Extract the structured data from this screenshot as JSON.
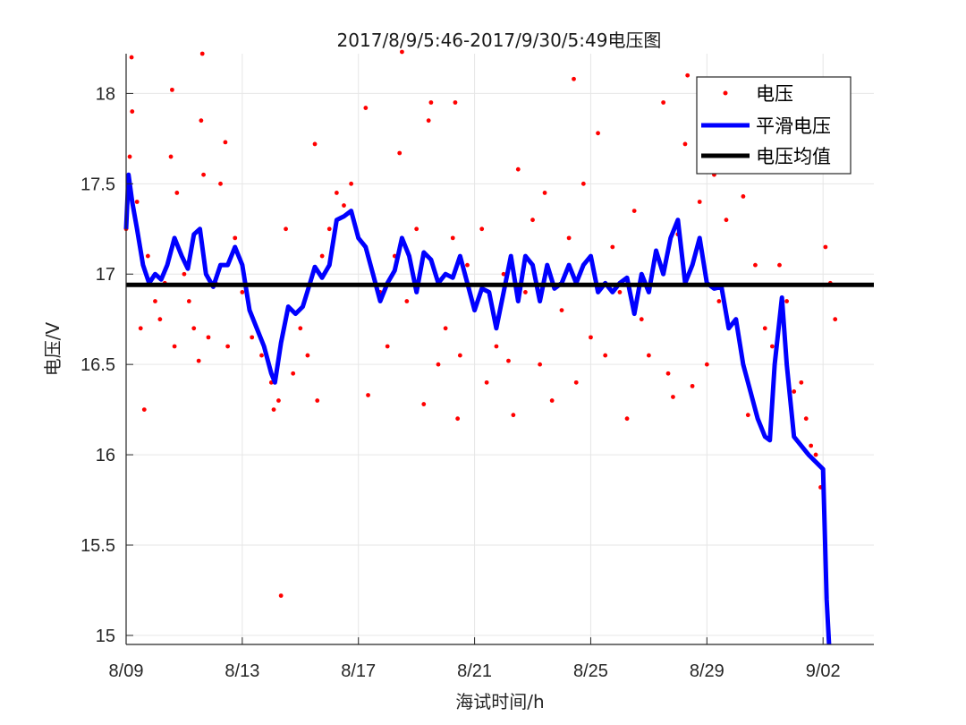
{
  "chart_data": {
    "type": "scatter",
    "title": "2017/8/9/5:46-2017/9/30/5:49电压图",
    "xlabel": "海试时间/h",
    "ylabel": "电压/V",
    "x_unit": "date (2017)",
    "xlim": [
      "2017-08-09",
      "2017-09-03T18:00"
    ],
    "ylim": [
      14.95,
      18.22
    ],
    "x_ticks": [
      {
        "date": "2017-08-09",
        "label": "8/09"
      },
      {
        "date": "2017-08-13",
        "label": "8/13"
      },
      {
        "date": "2017-08-17",
        "label": "8/17"
      },
      {
        "date": "2017-08-21",
        "label": "8/21"
      },
      {
        "date": "2017-08-25",
        "label": "8/25"
      },
      {
        "date": "2017-08-29",
        "label": "8/29"
      },
      {
        "date": "2017-09-02",
        "label": "9/02"
      }
    ],
    "y_ticks": [
      15,
      15.5,
      16,
      16.5,
      17,
      17.5,
      18
    ],
    "y_tick_labels": [
      "15",
      "15.5",
      "16",
      "16.5",
      "17",
      "17.5",
      "18"
    ],
    "grid": true,
    "legend_position": "top-right",
    "series": [
      {
        "name": "电压",
        "kind": "scatter",
        "color": "#ff0000",
        "points": [
          [
            "2017-08-09T00:00",
            17.25
          ],
          [
            "2017-08-09T03:00",
            17.65
          ],
          [
            "2017-08-09T04:30",
            18.2
          ],
          [
            "2017-08-09T05:00",
            17.9
          ],
          [
            "2017-08-09T09:00",
            17.4
          ],
          [
            "2017-08-09T12:00",
            16.7
          ],
          [
            "2017-08-09T15:00",
            16.25
          ],
          [
            "2017-08-09T18:00",
            17.1
          ],
          [
            "2017-08-10T00:00",
            16.85
          ],
          [
            "2017-08-10T04:00",
            16.75
          ],
          [
            "2017-08-10T08:00",
            16.95
          ],
          [
            "2017-08-10T13:00",
            17.65
          ],
          [
            "2017-08-10T14:00",
            18.02
          ],
          [
            "2017-08-10T16:00",
            16.6
          ],
          [
            "2017-08-10T18:00",
            17.45
          ],
          [
            "2017-08-11T00:00",
            17.0
          ],
          [
            "2017-08-11T04:00",
            16.85
          ],
          [
            "2017-08-11T08:00",
            16.7
          ],
          [
            "2017-08-11T12:00",
            16.52
          ],
          [
            "2017-08-11T14:00",
            17.85
          ],
          [
            "2017-08-11T15:00",
            18.22
          ],
          [
            "2017-08-11T16:00",
            17.55
          ],
          [
            "2017-08-11T20:00",
            16.65
          ],
          [
            "2017-08-12T02:00",
            16.95
          ],
          [
            "2017-08-12T06:00",
            17.5
          ],
          [
            "2017-08-12T10:00",
            17.73
          ],
          [
            "2017-08-12T12:00",
            16.6
          ],
          [
            "2017-08-12T18:00",
            17.2
          ],
          [
            "2017-08-13T00:00",
            16.9
          ],
          [
            "2017-08-13T08:00",
            16.65
          ],
          [
            "2017-08-13T16:00",
            16.55
          ],
          [
            "2017-08-14T00:00",
            16.4
          ],
          [
            "2017-08-14T02:00",
            16.25
          ],
          [
            "2017-08-14T06:00",
            16.3
          ],
          [
            "2017-08-14T08:00",
            15.22
          ],
          [
            "2017-08-14T12:00",
            17.25
          ],
          [
            "2017-08-14T18:00",
            16.45
          ],
          [
            "2017-08-15T00:00",
            16.7
          ],
          [
            "2017-08-15T06:00",
            16.55
          ],
          [
            "2017-08-15T12:00",
            17.72
          ],
          [
            "2017-08-15T14:00",
            16.3
          ],
          [
            "2017-08-15T18:00",
            17.1
          ],
          [
            "2017-08-16T00:00",
            17.25
          ],
          [
            "2017-08-16T06:00",
            17.45
          ],
          [
            "2017-08-16T12:00",
            17.38
          ],
          [
            "2017-08-16T18:00",
            17.5
          ],
          [
            "2017-08-17T00:00",
            17.2
          ],
          [
            "2017-08-17T06:00",
            17.92
          ],
          [
            "2017-08-17T08:00",
            16.33
          ],
          [
            "2017-08-17T12:00",
            17.0
          ],
          [
            "2017-08-17T18:00",
            16.9
          ],
          [
            "2017-08-18T00:00",
            16.6
          ],
          [
            "2017-08-18T06:00",
            17.1
          ],
          [
            "2017-08-18T10:00",
            17.67
          ],
          [
            "2017-08-18T12:00",
            18.23
          ],
          [
            "2017-08-18T16:00",
            16.85
          ],
          [
            "2017-08-19T00:00",
            17.25
          ],
          [
            "2017-08-19T06:00",
            16.28
          ],
          [
            "2017-08-19T10:00",
            17.85
          ],
          [
            "2017-08-19T12:00",
            17.95
          ],
          [
            "2017-08-19T18:00",
            16.5
          ],
          [
            "2017-08-20T00:00",
            16.7
          ],
          [
            "2017-08-20T06:00",
            17.2
          ],
          [
            "2017-08-20T08:00",
            17.95
          ],
          [
            "2017-08-20T10:00",
            16.2
          ],
          [
            "2017-08-20T12:00",
            16.55
          ],
          [
            "2017-08-20T18:00",
            17.05
          ],
          [
            "2017-08-21T00:00",
            16.8
          ],
          [
            "2017-08-21T06:00",
            17.25
          ],
          [
            "2017-08-21T10:00",
            16.4
          ],
          [
            "2017-08-21T18:00",
            16.6
          ],
          [
            "2017-08-22T00:00",
            17.0
          ],
          [
            "2017-08-22T04:00",
            16.52
          ],
          [
            "2017-08-22T08:00",
            16.22
          ],
          [
            "2017-08-22T12:00",
            17.58
          ],
          [
            "2017-08-22T18:00",
            16.9
          ],
          [
            "2017-08-23T00:00",
            17.3
          ],
          [
            "2017-08-23T06:00",
            16.5
          ],
          [
            "2017-08-23T10:00",
            17.45
          ],
          [
            "2017-08-23T16:00",
            16.3
          ],
          [
            "2017-08-24T00:00",
            16.8
          ],
          [
            "2017-08-24T06:00",
            17.2
          ],
          [
            "2017-08-24T10:00",
            18.08
          ],
          [
            "2017-08-24T12:00",
            16.4
          ],
          [
            "2017-08-24T18:00",
            17.5
          ],
          [
            "2017-08-25T00:00",
            16.65
          ],
          [
            "2017-08-25T06:00",
            17.78
          ],
          [
            "2017-08-25T12:00",
            16.55
          ],
          [
            "2017-08-25T18:00",
            17.15
          ],
          [
            "2017-08-26T00:00",
            16.9
          ],
          [
            "2017-08-26T06:00",
            16.2
          ],
          [
            "2017-08-26T12:00",
            17.35
          ],
          [
            "2017-08-26T18:00",
            16.75
          ],
          [
            "2017-08-27T00:00",
            16.55
          ],
          [
            "2017-08-27T06:00",
            17.12
          ],
          [
            "2017-08-27T12:00",
            17.95
          ],
          [
            "2017-08-27T16:00",
            16.45
          ],
          [
            "2017-08-27T20:00",
            16.32
          ],
          [
            "2017-08-28T00:00",
            17.22
          ],
          [
            "2017-08-28T06:00",
            17.72
          ],
          [
            "2017-08-28T08:00",
            18.1
          ],
          [
            "2017-08-28T12:00",
            16.38
          ],
          [
            "2017-08-28T18:00",
            17.4
          ],
          [
            "2017-08-29T00:00",
            16.5
          ],
          [
            "2017-08-29T06:00",
            17.55
          ],
          [
            "2017-08-29T10:00",
            16.85
          ],
          [
            "2017-08-29T16:00",
            17.3
          ],
          [
            "2017-08-30T00:00",
            16.75
          ],
          [
            "2017-08-30T06:00",
            17.43
          ],
          [
            "2017-08-30T10:00",
            16.22
          ],
          [
            "2017-08-30T16:00",
            17.05
          ],
          [
            "2017-08-31T00:00",
            16.7
          ],
          [
            "2017-08-31T06:00",
            16.6
          ],
          [
            "2017-08-31T12:00",
            17.05
          ],
          [
            "2017-08-31T18:00",
            16.85
          ],
          [
            "2017-09-01T00:00",
            16.35
          ],
          [
            "2017-09-01T06:00",
            16.4
          ],
          [
            "2017-09-01T10:00",
            16.2
          ],
          [
            "2017-09-01T14:00",
            16.05
          ],
          [
            "2017-09-01T18:00",
            16.0
          ],
          [
            "2017-09-01T22:00",
            15.82
          ],
          [
            "2017-09-02T02:00",
            17.15
          ],
          [
            "2017-09-02T06:00",
            16.95
          ],
          [
            "2017-09-02T10:00",
            16.75
          ]
        ]
      },
      {
        "name": "平滑电压",
        "kind": "line",
        "color": "#0000ff",
        "points": [
          [
            "2017-08-09T00:00",
            17.25
          ],
          [
            "2017-08-09T02:00",
            17.55
          ],
          [
            "2017-08-09T05:00",
            17.4
          ],
          [
            "2017-08-09T09:00",
            17.25
          ],
          [
            "2017-08-09T14:00",
            17.05
          ],
          [
            "2017-08-09T19:00",
            16.95
          ],
          [
            "2017-08-10T00:00",
            17.0
          ],
          [
            "2017-08-10T05:00",
            16.97
          ],
          [
            "2017-08-10T10:00",
            17.05
          ],
          [
            "2017-08-10T16:00",
            17.2
          ],
          [
            "2017-08-10T22:00",
            17.1
          ],
          [
            "2017-08-11T03:00",
            17.03
          ],
          [
            "2017-08-11T08:00",
            17.22
          ],
          [
            "2017-08-11T13:00",
            17.25
          ],
          [
            "2017-08-11T18:00",
            17.0
          ],
          [
            "2017-08-12T00:00",
            16.93
          ],
          [
            "2017-08-12T06:00",
            17.05
          ],
          [
            "2017-08-12T12:00",
            17.05
          ],
          [
            "2017-08-12T18:00",
            17.15
          ],
          [
            "2017-08-13T00:00",
            17.05
          ],
          [
            "2017-08-13T06:00",
            16.8
          ],
          [
            "2017-08-13T12:00",
            16.7
          ],
          [
            "2017-08-13T18:00",
            16.6
          ],
          [
            "2017-08-14T00:00",
            16.45
          ],
          [
            "2017-08-14T03:00",
            16.4
          ],
          [
            "2017-08-14T08:00",
            16.62
          ],
          [
            "2017-08-14T14:00",
            16.82
          ],
          [
            "2017-08-14T20:00",
            16.78
          ],
          [
            "2017-08-15T02:00",
            16.82
          ],
          [
            "2017-08-15T08:00",
            16.95
          ],
          [
            "2017-08-15T12:00",
            17.04
          ],
          [
            "2017-08-15T18:00",
            16.98
          ],
          [
            "2017-08-16T00:00",
            17.05
          ],
          [
            "2017-08-16T06:00",
            17.3
          ],
          [
            "2017-08-16T12:00",
            17.32
          ],
          [
            "2017-08-16T18:00",
            17.35
          ],
          [
            "2017-08-17T00:00",
            17.2
          ],
          [
            "2017-08-17T06:00",
            17.15
          ],
          [
            "2017-08-17T12:00",
            17.0
          ],
          [
            "2017-08-17T18:00",
            16.85
          ],
          [
            "2017-08-18T00:00",
            16.95
          ],
          [
            "2017-08-18T06:00",
            17.02
          ],
          [
            "2017-08-18T12:00",
            17.2
          ],
          [
            "2017-08-18T18:00",
            17.1
          ],
          [
            "2017-08-19T00:00",
            16.9
          ],
          [
            "2017-08-19T06:00",
            17.12
          ],
          [
            "2017-08-19T12:00",
            17.08
          ],
          [
            "2017-08-19T18:00",
            16.95
          ],
          [
            "2017-08-20T00:00",
            17.0
          ],
          [
            "2017-08-20T06:00",
            16.98
          ],
          [
            "2017-08-20T12:00",
            17.1
          ],
          [
            "2017-08-20T18:00",
            16.95
          ],
          [
            "2017-08-21T00:00",
            16.8
          ],
          [
            "2017-08-21T06:00",
            16.92
          ],
          [
            "2017-08-21T12:00",
            16.9
          ],
          [
            "2017-08-21T18:00",
            16.7
          ],
          [
            "2017-08-22T00:00",
            16.9
          ],
          [
            "2017-08-22T06:00",
            17.1
          ],
          [
            "2017-08-22T12:00",
            16.85
          ],
          [
            "2017-08-22T18:00",
            17.1
          ],
          [
            "2017-08-23T00:00",
            17.05
          ],
          [
            "2017-08-23T06:00",
            16.85
          ],
          [
            "2017-08-23T12:00",
            17.05
          ],
          [
            "2017-08-23T18:00",
            16.92
          ],
          [
            "2017-08-24T00:00",
            16.95
          ],
          [
            "2017-08-24T06:00",
            17.05
          ],
          [
            "2017-08-24T12:00",
            16.95
          ],
          [
            "2017-08-24T18:00",
            17.05
          ],
          [
            "2017-08-25T00:00",
            17.1
          ],
          [
            "2017-08-25T06:00",
            16.9
          ],
          [
            "2017-08-25T12:00",
            16.95
          ],
          [
            "2017-08-25T18:00",
            16.9
          ],
          [
            "2017-08-26T00:00",
            16.95
          ],
          [
            "2017-08-26T06:00",
            16.98
          ],
          [
            "2017-08-26T12:00",
            16.78
          ],
          [
            "2017-08-26T18:00",
            17.0
          ],
          [
            "2017-08-27T00:00",
            16.9
          ],
          [
            "2017-08-27T06:00",
            17.13
          ],
          [
            "2017-08-27T12:00",
            17.0
          ],
          [
            "2017-08-27T18:00",
            17.2
          ],
          [
            "2017-08-28T00:00",
            17.3
          ],
          [
            "2017-08-28T06:00",
            16.95
          ],
          [
            "2017-08-28T12:00",
            17.05
          ],
          [
            "2017-08-28T18:00",
            17.2
          ],
          [
            "2017-08-29T00:00",
            16.95
          ],
          [
            "2017-08-29T06:00",
            16.92
          ],
          [
            "2017-08-29T12:00",
            16.93
          ],
          [
            "2017-08-29T18:00",
            16.7
          ],
          [
            "2017-08-30T00:00",
            16.75
          ],
          [
            "2017-08-30T06:00",
            16.5
          ],
          [
            "2017-08-30T12:00",
            16.35
          ],
          [
            "2017-08-30T18:00",
            16.2
          ],
          [
            "2017-08-31T00:00",
            16.1
          ],
          [
            "2017-08-31T04:00",
            16.08
          ],
          [
            "2017-08-31T08:00",
            16.5
          ],
          [
            "2017-08-31T14:00",
            16.87
          ],
          [
            "2017-08-31T18:00",
            16.5
          ],
          [
            "2017-09-01T00:00",
            16.1
          ],
          [
            "2017-09-01T12:00",
            16.0
          ],
          [
            "2017-09-02T00:00",
            15.92
          ],
          [
            "2017-09-02T03:00",
            15.2
          ],
          [
            "2017-09-02T05:00",
            14.95
          ]
        ]
      },
      {
        "name": "电压均值",
        "kind": "line",
        "color": "#000000",
        "points": [
          [
            "2017-08-09T00:00",
            16.94
          ],
          [
            "2017-09-03T18:00",
            16.94
          ]
        ]
      }
    ]
  },
  "legend": {
    "items": [
      {
        "label": "电压",
        "swatch": "dot",
        "color": "#ff0000"
      },
      {
        "label": "平滑电压",
        "swatch": "line",
        "color": "#0000ff"
      },
      {
        "label": "电压均值",
        "swatch": "line",
        "color": "#000000"
      }
    ]
  }
}
